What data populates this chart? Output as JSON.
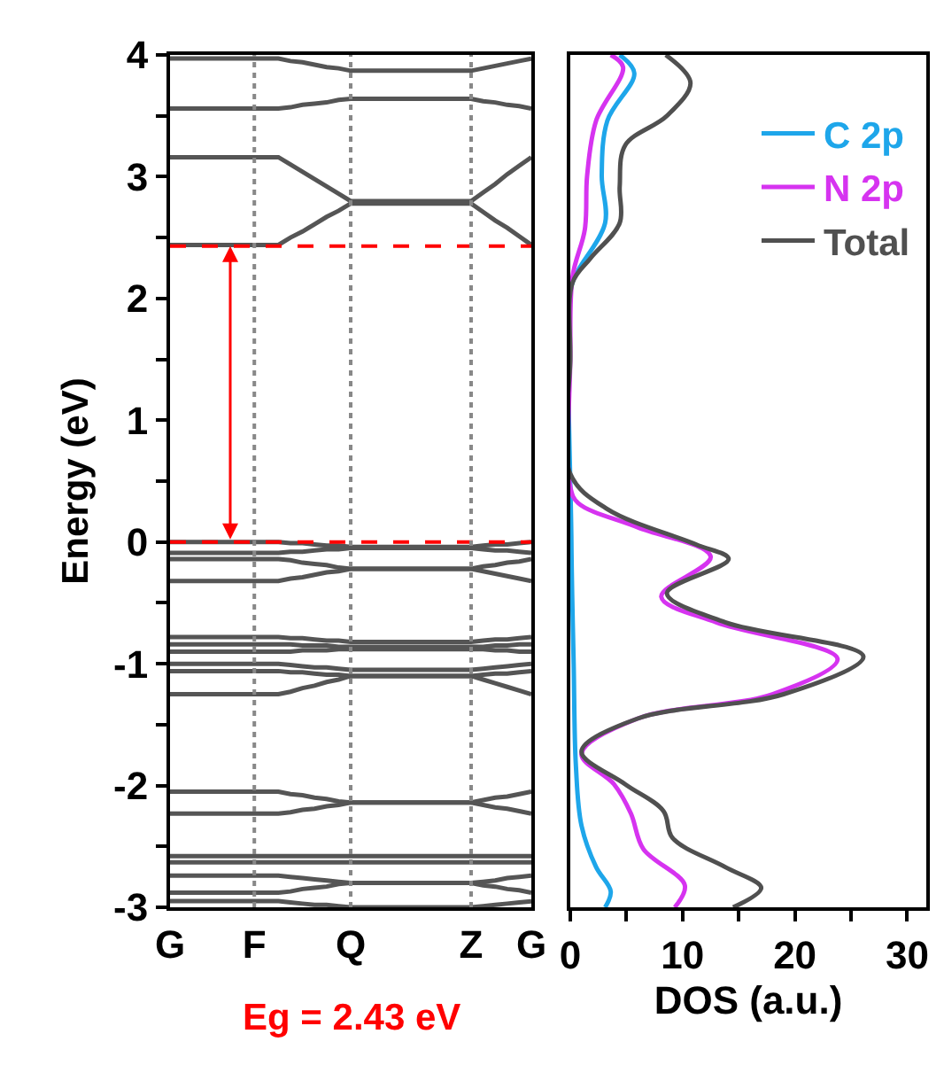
{
  "chart_data": [
    {
      "type": "line",
      "ylabel": "Energy (eV)",
      "annotations": [
        "Eg = 2.43 eV"
      ],
      "categories": [
        "G",
        null,
        null,
        null,
        null,
        null,
        null,
        "F",
        null,
        null,
        null,
        null,
        null,
        null,
        null,
        "Q",
        null,
        null,
        null,
        null,
        null,
        null,
        null,
        null,
        null,
        "Z",
        null,
        null,
        null,
        null,
        "G"
      ],
      "ylim": [
        -3,
        4
      ],
      "yticks": [
        -3,
        {
          "value": -2.5,
          "label": null
        },
        -2,
        {
          "value": -1.5,
          "label": null
        },
        -1,
        {
          "value": -0.5,
          "label": null
        },
        0,
        {
          "value": 0.5,
          "label": null
        },
        1,
        {
          "value": 1.5,
          "label": null
        },
        2,
        {
          "value": 2.5,
          "label": null
        },
        3,
        {
          "value": 3.5,
          "label": null
        },
        4
      ],
      "ref_lines": [
        {
          "axis": "y",
          "value": 0,
          "color": "#ff0000",
          "line_style": "dashed"
        },
        {
          "axis": "y",
          "value": 2.43,
          "color": "#ff0000",
          "line_style": "dashed"
        },
        {
          "axis": "x",
          "value": "F",
          "color": "#888888",
          "line_style": "dotted"
        },
        {
          "axis": "x",
          "value": "Q",
          "color": "#888888",
          "line_style": "dotted"
        },
        {
          "axis": "x",
          "value": "Z",
          "color": "#888888",
          "line_style": "dotted"
        }
      ],
      "series": [
        {
          "color": "#555555",
          "values": [
            3.97,
            3.97,
            3.97,
            3.97,
            3.97,
            3.97,
            3.97,
            3.97,
            3.97,
            3.97,
            3.95,
            3.94,
            3.92,
            3.9,
            3.89,
            3.87,
            3.87,
            3.87,
            3.87,
            3.87,
            3.87,
            3.87,
            3.87,
            3.87,
            3.87,
            3.87,
            3.89,
            3.91,
            3.93,
            3.95,
            3.97
          ]
        },
        {
          "color": "#555555",
          "values": [
            3.56,
            3.56,
            3.56,
            3.56,
            3.56,
            3.56,
            3.56,
            3.56,
            3.56,
            3.56,
            3.57,
            3.59,
            3.6,
            3.61,
            3.63,
            3.64,
            3.64,
            3.64,
            3.64,
            3.64,
            3.64,
            3.64,
            3.64,
            3.64,
            3.64,
            3.64,
            3.62,
            3.61,
            3.59,
            3.58,
            3.56
          ]
        },
        {
          "color": "#555555",
          "values": [
            3.16,
            3.16,
            3.16,
            3.16,
            3.16,
            3.16,
            3.16,
            3.16,
            3.16,
            3.16,
            3.1,
            3.04,
            2.98,
            2.92,
            2.86,
            2.8,
            2.8,
            2.8,
            2.8,
            2.8,
            2.8,
            2.8,
            2.8,
            2.8,
            2.8,
            2.8,
            2.87,
            2.94,
            3.02,
            3.09,
            3.16
          ]
        },
        {
          "color": "#555555",
          "values": [
            2.44,
            2.44,
            2.44,
            2.44,
            2.44,
            2.44,
            2.44,
            2.44,
            2.44,
            2.44,
            2.5,
            2.55,
            2.61,
            2.67,
            2.72,
            2.78,
            2.78,
            2.78,
            2.78,
            2.78,
            2.78,
            2.78,
            2.78,
            2.78,
            2.78,
            2.78,
            2.71,
            2.64,
            2.58,
            2.51,
            2.44
          ]
        },
        {
          "color": "#555555",
          "values": [
            0,
            0,
            0,
            0,
            0,
            0,
            0,
            0,
            0,
            0,
            -0.01,
            -0.01,
            -0.02,
            -0.03,
            -0.03,
            -0.04,
            -0.04,
            -0.04,
            -0.04,
            -0.04,
            -0.04,
            -0.04,
            -0.04,
            -0.04,
            -0.04,
            -0.04,
            -0.03,
            -0.02,
            -0.02,
            -0.01,
            0
          ]
        },
        {
          "color": "#555555",
          "values": [
            -0.09,
            -0.09,
            -0.09,
            -0.09,
            -0.09,
            -0.09,
            -0.09,
            -0.09,
            -0.09,
            -0.09,
            -0.08,
            -0.08,
            -0.07,
            -0.06,
            -0.06,
            -0.05,
            -0.05,
            -0.05,
            -0.05,
            -0.05,
            -0.05,
            -0.05,
            -0.05,
            -0.05,
            -0.05,
            -0.05,
            -0.06,
            -0.07,
            -0.07,
            -0.08,
            -0.09
          ]
        },
        {
          "color": "#555555",
          "values": [
            -0.14,
            -0.14,
            -0.14,
            -0.14,
            -0.14,
            -0.14,
            -0.14,
            -0.14,
            -0.14,
            -0.14,
            -0.15,
            -0.17,
            -0.18,
            -0.19,
            -0.21,
            -0.22,
            -0.22,
            -0.22,
            -0.22,
            -0.22,
            -0.22,
            -0.22,
            -0.22,
            -0.22,
            -0.22,
            -0.22,
            -0.2,
            -0.19,
            -0.17,
            -0.16,
            -0.14
          ]
        },
        {
          "color": "#555555",
          "values": [
            -0.32,
            -0.32,
            -0.32,
            -0.32,
            -0.32,
            -0.32,
            -0.32,
            -0.32,
            -0.32,
            -0.32,
            -0.3,
            -0.29,
            -0.27,
            -0.25,
            -0.24,
            -0.22,
            -0.22,
            -0.22,
            -0.22,
            -0.22,
            -0.22,
            -0.22,
            -0.22,
            -0.22,
            -0.22,
            -0.22,
            -0.24,
            -0.26,
            -0.28,
            -0.3,
            -0.32
          ]
        },
        {
          "color": "#555555",
          "values": [
            -0.78,
            -0.78,
            -0.78,
            -0.78,
            -0.78,
            -0.78,
            -0.78,
            -0.78,
            -0.78,
            -0.78,
            -0.79,
            -0.79,
            -0.8,
            -0.81,
            -0.81,
            -0.82,
            -0.82,
            -0.82,
            -0.82,
            -0.82,
            -0.82,
            -0.82,
            -0.82,
            -0.82,
            -0.82,
            -0.82,
            -0.81,
            -0.8,
            -0.8,
            -0.79,
            -0.78
          ]
        },
        {
          "color": "#555555",
          "values": [
            -0.84,
            -0.84,
            -0.84,
            -0.84,
            -0.84,
            -0.84,
            -0.84,
            -0.84,
            -0.84,
            -0.84,
            -0.84,
            -0.85,
            -0.85,
            -0.85,
            -0.86,
            -0.86,
            -0.86,
            -0.86,
            -0.86,
            -0.86,
            -0.86,
            -0.86,
            -0.86,
            -0.86,
            -0.86,
            -0.86,
            -0.86,
            -0.85,
            -0.85,
            -0.84,
            -0.84
          ]
        },
        {
          "color": "#555555",
          "values": [
            -0.9,
            -0.9,
            -0.9,
            -0.9,
            -0.9,
            -0.9,
            -0.9,
            -0.9,
            -0.9,
            -0.9,
            -0.9,
            -0.89,
            -0.89,
            -0.89,
            -0.88,
            -0.88,
            -0.88,
            -0.88,
            -0.88,
            -0.88,
            -0.88,
            -0.88,
            -0.88,
            -0.88,
            -0.88,
            -0.88,
            -0.88,
            -0.89,
            -0.89,
            -0.9,
            -0.9
          ]
        },
        {
          "color": "#555555",
          "values": [
            -1,
            -1,
            -1,
            -1,
            -1,
            -1,
            -1,
            -1,
            -1,
            -1,
            -1.01,
            -1.02,
            -1.03,
            -1.03,
            -1.04,
            -1.05,
            -1.05,
            -1.05,
            -1.05,
            -1.05,
            -1.05,
            -1.05,
            -1.05,
            -1.05,
            -1.05,
            -1.05,
            -1.04,
            -1.03,
            -1.02,
            -1.01,
            -1
          ]
        },
        {
          "color": "#555555",
          "values": [
            -1.06,
            -1.06,
            -1.06,
            -1.06,
            -1.06,
            -1.06,
            -1.06,
            -1.06,
            -1.06,
            -1.06,
            -1.07,
            -1.07,
            -1.08,
            -1.09,
            -1.09,
            -1.1,
            -1.1,
            -1.1,
            -1.1,
            -1.1,
            -1.1,
            -1.1,
            -1.1,
            -1.1,
            -1.1,
            -1.1,
            -1.09,
            -1.08,
            -1.08,
            -1.07,
            -1.06
          ]
        },
        {
          "color": "#555555",
          "values": [
            -1.25,
            -1.25,
            -1.25,
            -1.25,
            -1.25,
            -1.25,
            -1.25,
            -1.25,
            -1.25,
            -1.25,
            -1.23,
            -1.2,
            -1.18,
            -1.15,
            -1.13,
            -1.1,
            -1.1,
            -1.1,
            -1.1,
            -1.1,
            -1.1,
            -1.1,
            -1.1,
            -1.1,
            -1.1,
            -1.1,
            -1.13,
            -1.16,
            -1.19,
            -1.22,
            -1.25
          ]
        },
        {
          "color": "#555555",
          "values": [
            -2.05,
            -2.05,
            -2.05,
            -2.05,
            -2.05,
            -2.05,
            -2.05,
            -2.05,
            -2.05,
            -2.05,
            -2.07,
            -2.08,
            -2.1,
            -2.11,
            -2.13,
            -2.14,
            -2.14,
            -2.14,
            -2.14,
            -2.14,
            -2.14,
            -2.14,
            -2.14,
            -2.14,
            -2.14,
            -2.14,
            -2.12,
            -2.1,
            -2.09,
            -2.07,
            -2.05
          ]
        },
        {
          "color": "#555555",
          "values": [
            -2.23,
            -2.23,
            -2.23,
            -2.23,
            -2.23,
            -2.23,
            -2.23,
            -2.23,
            -2.23,
            -2.23,
            -2.22,
            -2.2,
            -2.19,
            -2.17,
            -2.16,
            -2.14,
            -2.14,
            -2.14,
            -2.14,
            -2.14,
            -2.14,
            -2.14,
            -2.14,
            -2.14,
            -2.14,
            -2.14,
            -2.16,
            -2.18,
            -2.19,
            -2.21,
            -2.23
          ]
        },
        {
          "color": "#555555",
          "values": [
            -2.58,
            -2.58,
            -2.58,
            -2.58,
            -2.58,
            -2.58,
            -2.58,
            -2.58,
            -2.58,
            -2.58,
            -2.58,
            -2.58,
            -2.58,
            -2.58,
            -2.58,
            -2.58,
            -2.58,
            -2.58,
            -2.58,
            -2.58,
            -2.58,
            -2.58,
            -2.58,
            -2.58,
            -2.58,
            -2.58,
            -2.58,
            -2.58,
            -2.58,
            -2.58,
            -2.58
          ]
        },
        {
          "color": "#555555",
          "values": [
            -2.63,
            -2.63,
            -2.63,
            -2.63,
            -2.63,
            -2.63,
            -2.63,
            -2.63,
            -2.63,
            -2.63,
            -2.63,
            -2.63,
            -2.63,
            -2.63,
            -2.63,
            -2.63,
            -2.63,
            -2.63,
            -2.63,
            -2.63,
            -2.63,
            -2.63,
            -2.63,
            -2.63,
            -2.63,
            -2.63,
            -2.63,
            -2.63,
            -2.63,
            -2.63,
            -2.63
          ]
        },
        {
          "color": "#555555",
          "values": [
            -2.74,
            -2.74,
            -2.74,
            -2.74,
            -2.74,
            -2.74,
            -2.74,
            -2.74,
            -2.74,
            -2.74,
            -2.75,
            -2.76,
            -2.77,
            -2.78,
            -2.79,
            -2.8,
            -2.8,
            -2.8,
            -2.8,
            -2.8,
            -2.8,
            -2.8,
            -2.8,
            -2.8,
            -2.8,
            -2.8,
            -2.79,
            -2.78,
            -2.76,
            -2.75,
            -2.74
          ]
        },
        {
          "color": "#555555",
          "values": [
            -2.88,
            -2.88,
            -2.88,
            -2.88,
            -2.88,
            -2.88,
            -2.88,
            -2.88,
            -2.88,
            -2.88,
            -2.87,
            -2.85,
            -2.84,
            -2.83,
            -2.81,
            -2.8,
            -2.8,
            -2.8,
            -2.8,
            -2.8,
            -2.8,
            -2.8,
            -2.8,
            -2.8,
            -2.8,
            -2.8,
            -2.82,
            -2.83,
            -2.85,
            -2.86,
            -2.88
          ]
        },
        {
          "color": "#555555",
          "values": [
            -2.95,
            -2.95,
            -2.95,
            -2.95,
            -2.95,
            -2.95,
            -2.95,
            -2.95,
            -2.95,
            -2.95,
            -2.96,
            -2.97,
            -2.98,
            -2.98,
            -2.99,
            -3,
            -3,
            -3,
            -3,
            -3,
            -3,
            -3,
            -3,
            -3,
            -3,
            -3,
            -2.99,
            -2.98,
            -2.97,
            -2.96,
            -2.95
          ]
        }
      ]
    },
    {
      "type": "line",
      "xlabel": "DOS (a.u.)",
      "legend": "top right",
      "tick_labels": "x",
      "xlim": [
        0,
        31.7
      ],
      "xticks": [
        0,
        {
          "value": 5,
          "label": null
        },
        10,
        {
          "value": 15,
          "label": null
        },
        20,
        {
          "value": 25,
          "label": null
        },
        30
      ],
      "ylim": [
        -3,
        4
      ],
      "series": [
        {
          "name": "C 2p",
          "color": "#1ea6ea",
          "x": [
            4.4,
            5.7,
            3.3,
            2.8,
            3.1,
            0.7,
            0.1,
            0.1,
            0.3,
            0.5,
            1.0,
            2.3,
            3.6,
            3.1
          ],
          "values": [
            4,
            3.85,
            3.46,
            3.01,
            2.62,
            2.23,
            2.1,
            0,
            -1.0,
            -1.84,
            -2.33,
            -2.67,
            -2.87,
            -3
          ]
        },
        {
          "name": "N 2p",
          "color": "#d633f0",
          "x": [
            3.6,
            4.7,
            2.3,
            1.5,
            1.3,
            0.2,
            0,
            0,
            0.7,
            6.0,
            12.5,
            8.1,
            13.0,
            23.8,
            18.0,
            6.0,
            1.0,
            3.9,
            5.4,
            6.5,
            10.2,
            9.3
          ],
          "values": [
            4,
            3.9,
            3.46,
            3.01,
            2.57,
            2.18,
            1.5,
            0.45,
            0.32,
            0.12,
            -0.12,
            -0.45,
            -0.66,
            -0.96,
            -1.25,
            -1.45,
            -1.74,
            -1.99,
            -2.23,
            -2.52,
            -2.82,
            -3
          ]
        },
        {
          "name": "Total",
          "color": "#505050",
          "x": [
            8.5,
            10.7,
            8.6,
            4.9,
            4.4,
            4.4,
            1.8,
            0.2,
            0,
            0,
            3.3,
            11.2,
            14.1,
            8.6,
            13.8,
            26.1,
            19.0,
            6.0,
            1.0,
            4.9,
            8.3,
            9.1,
            13.8,
            17.0,
            14.5
          ],
          "values": [
            4,
            3.77,
            3.5,
            3.26,
            2.92,
            2.62,
            2.33,
            2.13,
            1.5,
            0.56,
            0.27,
            -0.02,
            -0.14,
            -0.42,
            -0.66,
            -0.94,
            -1.25,
            -1.45,
            -1.72,
            -1.99,
            -2.21,
            -2.43,
            -2.67,
            -2.84,
            -3
          ]
        }
      ]
    }
  ]
}
